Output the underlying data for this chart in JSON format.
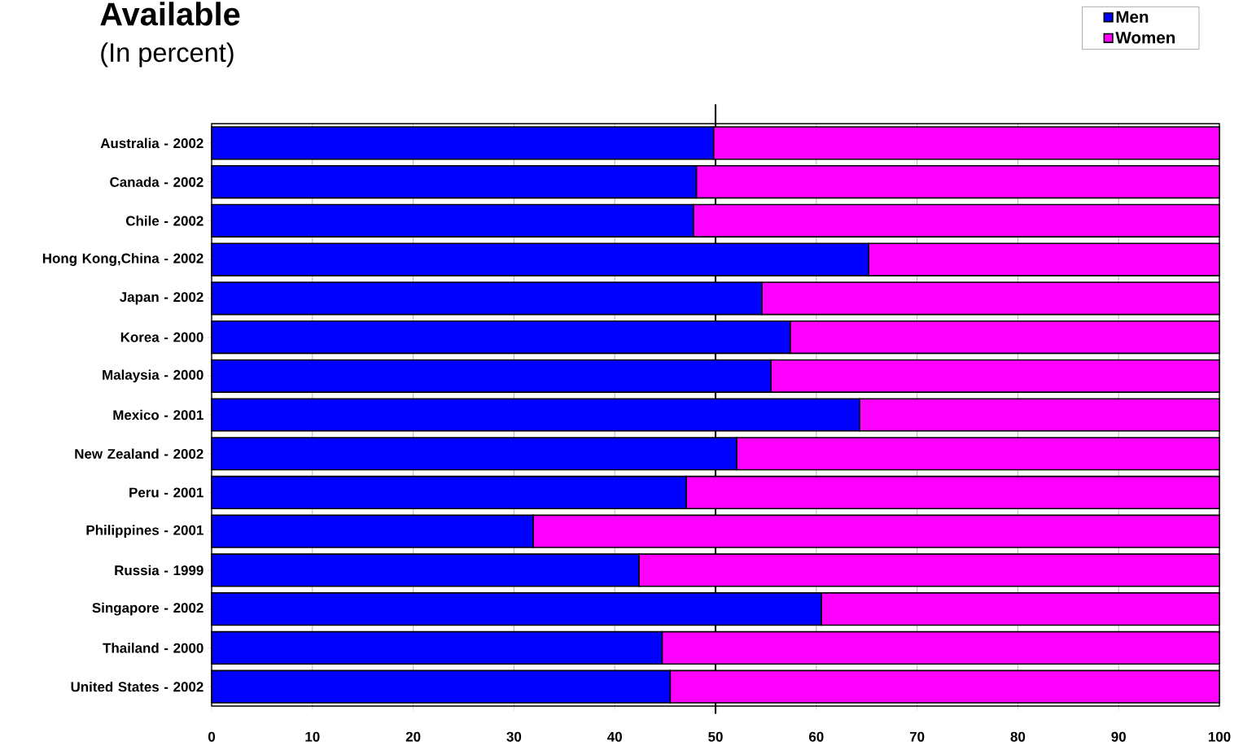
{
  "chart_data": {
    "type": "bar",
    "orientation": "horizontal",
    "stacked": true,
    "title": "Available",
    "subtitle": "(In percent)",
    "categories": [
      "Australia - 2002",
      "Canada - 2002",
      "Chile - 2002",
      "Hong Kong,China - 2002",
      "Japan - 2002",
      "Korea - 2000",
      "Malaysia - 2000",
      "Mexico - 2001",
      "New Zealand - 2002",
      "Peru - 2001",
      "Philippines - 2001",
      "Russia - 1999",
      "Singapore - 2002",
      "Thailand - 2000",
      "United States - 2002"
    ],
    "series": [
      {
        "name": "Men",
        "color": "#0000ff",
        "values": [
          49.8,
          48.1,
          47.8,
          65.2,
          54.6,
          57.4,
          55.5,
          64.3,
          52.1,
          47.1,
          31.9,
          42.4,
          60.5,
          44.7,
          45.5
        ]
      },
      {
        "name": "Women",
        "color": "#ff00ff",
        "values": [
          50.2,
          51.9,
          52.2,
          34.8,
          45.4,
          42.6,
          44.5,
          35.7,
          47.9,
          52.9,
          68.1,
          57.6,
          39.5,
          55.3,
          54.5
        ]
      }
    ],
    "xlim": [
      0,
      100
    ],
    "xticks": [
      0,
      10,
      20,
      30,
      40,
      50,
      60,
      70,
      80,
      90,
      100
    ],
    "grid": "x",
    "legend": "top right",
    "ref_lines": [
      {
        "axis": "x",
        "value": 50,
        "color": "#000000"
      }
    ]
  }
}
